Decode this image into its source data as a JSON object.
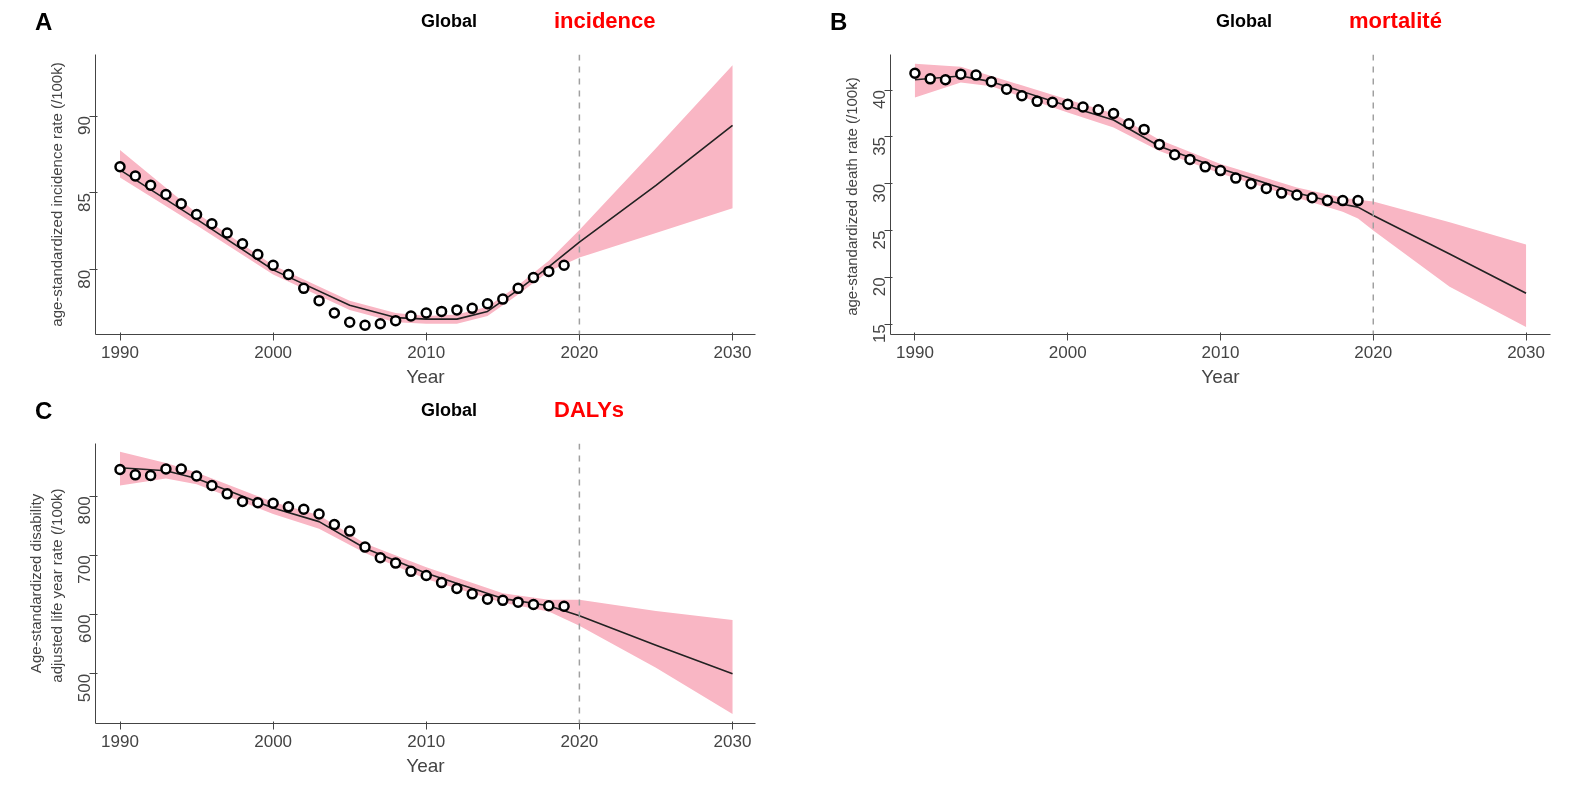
{
  "chart_data": [
    {
      "type": "line",
      "title": "Global",
      "annotations": [
        "A",
        "incidence"
      ],
      "xlabel": "Year",
      "ylabel": "age-standardized incidence rate (/100k)",
      "xlim": [
        1988.4,
        2031.5
      ],
      "ylim": [
        75.8,
        94
      ],
      "xticks": [
        1990,
        2000,
        2010,
        2020,
        2030
      ],
      "yticks": [
        80,
        85,
        90
      ],
      "ref_lines": [
        {
          "axis": "x",
          "value": 2020,
          "color": "#a0a0a0",
          "line_style": "dashed"
        }
      ],
      "series": [
        {
          "type": "line",
          "color": "#222222",
          "line_style": "solid",
          "x": [
            1990,
            1995,
            2000,
            2005,
            2008,
            2010,
            2012,
            2014,
            2016,
            2018,
            2020,
            2025,
            2030
          ],
          "values": [
            86.5,
            83.3,
            80.0,
            77.7,
            76.9,
            76.8,
            76.8,
            77.3,
            78.7,
            80.2,
            81.8,
            85.5,
            89.4
          ],
          "lower": [
            86.0,
            82.9,
            79.7,
            77.4,
            76.6,
            76.5,
            76.5,
            77.0,
            78.4,
            79.9,
            80.8,
            82.4,
            84.0
          ],
          "upper": [
            87.8,
            83.7,
            80.3,
            78.0,
            77.2,
            77.0,
            77.1,
            77.6,
            79.0,
            80.6,
            82.6,
            87.9,
            93.3
          ]
        },
        {
          "type": "scatter",
          "color": "#000000",
          "marker": "circle",
          "x": [
            1990,
            1991,
            1992,
            1993,
            1994,
            1995,
            1996,
            1997,
            1998,
            1999,
            2000,
            2001,
            2002,
            2003,
            2004,
            2005,
            2006,
            2007,
            2008,
            2009,
            2010,
            2011,
            2012,
            2013,
            2014,
            2015,
            2016,
            2017,
            2018,
            2019
          ],
          "values": [
            86.7,
            86.1,
            85.5,
            84.9,
            84.3,
            83.6,
            83.0,
            82.4,
            81.7,
            81.0,
            80.3,
            79.7,
            78.8,
            78.0,
            77.2,
            76.6,
            76.4,
            76.5,
            76.7,
            77.0,
            77.2,
            77.3,
            77.4,
            77.5,
            77.8,
            78.1,
            78.8,
            79.5,
            79.9,
            80.3
          ]
        }
      ]
    },
    {
      "type": "line",
      "title": "Global",
      "annotations": [
        "B",
        "mortalité"
      ],
      "xlabel": "Year",
      "ylabel": "age-standardized death rate  (/100k)",
      "xlim": [
        1988.4,
        2031.6
      ],
      "ylim": [
        13.9,
        43.8
      ],
      "xticks": [
        1990,
        2000,
        2010,
        2020,
        2030
      ],
      "yticks": [
        15,
        20,
        25,
        30,
        35,
        40
      ],
      "ref_lines": [
        {
          "axis": "x",
          "value": 2020,
          "color": "#a0a0a0",
          "line_style": "dashed"
        }
      ],
      "series": [
        {
          "type": "line",
          "color": "#222222",
          "line_style": "solid",
          "x": [
            1990,
            1993,
            1995,
            2000,
            2003,
            2006,
            2010,
            2015,
            2018,
            2019,
            2020,
            2025,
            2030
          ],
          "values": [
            41.1,
            41.5,
            40.9,
            38.3,
            36.8,
            34.0,
            31.6,
            29.0,
            27.8,
            27.5,
            26.6,
            22.5,
            18.3
          ],
          "lower": [
            39.2,
            40.8,
            40.4,
            37.6,
            36.0,
            33.5,
            31.1,
            28.5,
            27.0,
            26.3,
            25.0,
            19.0,
            14.7
          ],
          "upper": [
            42.8,
            42.5,
            41.5,
            39.0,
            37.5,
            34.7,
            32.1,
            29.6,
            28.5,
            28.3,
            28.1,
            25.9,
            23.5
          ]
        },
        {
          "type": "scatter",
          "color": "#000000",
          "marker": "circle",
          "x": [
            1990,
            1991,
            1992,
            1993,
            1994,
            1995,
            1996,
            1997,
            1998,
            1999,
            2000,
            2001,
            2002,
            2003,
            2004,
            2005,
            2006,
            2007,
            2008,
            2009,
            2010,
            2011,
            2012,
            2013,
            2014,
            2015,
            2016,
            2017,
            2018,
            2019
          ],
          "values": [
            41.8,
            41.2,
            41.1,
            41.7,
            41.6,
            40.9,
            40.1,
            39.4,
            38.8,
            38.7,
            38.5,
            38.2,
            37.9,
            37.5,
            36.4,
            35.8,
            34.2,
            33.1,
            32.6,
            31.8,
            31.4,
            30.6,
            30.0,
            29.5,
            29.0,
            28.8,
            28.5,
            28.2,
            28.2,
            28.2
          ]
        }
      ]
    },
    {
      "type": "line",
      "title": "Global",
      "annotations": [
        "C",
        "DALYs"
      ],
      "xlabel": "Year",
      "ylabel": "Age-standardized disability\nadjusted life year rate  (/100k)",
      "xlim": [
        1988.4,
        2031.5
      ],
      "ylim": [
        416,
        889
      ],
      "xticks": [
        1990,
        2000,
        2010,
        2020,
        2030
      ],
      "yticks": [
        500,
        600,
        700,
        800
      ],
      "ref_lines": [
        {
          "axis": "x",
          "value": 2020,
          "color": "#a0a0a0",
          "line_style": "dashed"
        }
      ],
      "series": [
        {
          "type": "line",
          "color": "#222222",
          "line_style": "solid",
          "x": [
            1990,
            1993,
            1995,
            2000,
            2003,
            2006,
            2010,
            2015,
            2018,
            2020,
            2025,
            2030
          ],
          "values": [
            848,
            843,
            830,
            780,
            757,
            712,
            670,
            627,
            615,
            598,
            548,
            500
          ],
          "lower": [
            818,
            830,
            820,
            770,
            745,
            704,
            660,
            620,
            605,
            581,
            510,
            432
          ],
          "upper": [
            875,
            856,
            840,
            790,
            768,
            720,
            680,
            636,
            625,
            625,
            606,
            591
          ]
        },
        {
          "type": "scatter",
          "color": "#000000",
          "marker": "circle",
          "x": [
            1990,
            1991,
            1992,
            1993,
            1994,
            1995,
            1996,
            1997,
            1998,
            1999,
            2000,
            2001,
            2002,
            2003,
            2004,
            2005,
            2006,
            2007,
            2008,
            2009,
            2010,
            2011,
            2012,
            2013,
            2014,
            2015,
            2016,
            2017,
            2018,
            2019
          ],
          "values": [
            845,
            836,
            835,
            846,
            846,
            834,
            818,
            804,
            791,
            789,
            788,
            782,
            778,
            770,
            752,
            741,
            714,
            696,
            687,
            673,
            666,
            654,
            644,
            635,
            626,
            624,
            621,
            617,
            615,
            614
          ]
        }
      ]
    }
  ]
}
